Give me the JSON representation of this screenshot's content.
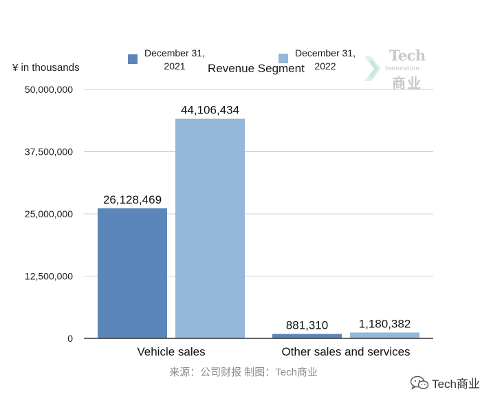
{
  "chart_data": {
    "type": "bar",
    "title": "Revenue Segment",
    "ylabel": "¥ in thousands",
    "xlabel": "",
    "categories": [
      "Vehicle sales",
      "Other sales and services"
    ],
    "series": [
      {
        "name": "December 31, 2021",
        "values": [
          26128469,
          881310
        ],
        "labels": [
          "26,128,469",
          "881,310"
        ],
        "color": "#5b86b9"
      },
      {
        "name": "December 31, 2022",
        "values": [
          44106434,
          1180382
        ],
        "labels": [
          "44,106,434",
          "1,180,382"
        ],
        "color": "#94b7da"
      }
    ],
    "ylim": [
      0,
      50000000
    ],
    "yticks": [
      0,
      12500000,
      25000000,
      37500000,
      50000000
    ],
    "ytick_labels": [
      "0",
      "12,500,000",
      "25,000,000",
      "37,500,000",
      "50,000,000"
    ],
    "grid": true,
    "legend": "top"
  },
  "legend": {
    "item1_line1": "December 31,",
    "item1_line2": "2021",
    "item2_line1": "December 31,",
    "item2_line2": "2022"
  },
  "source_text": "来源：公司财报 制图：Tech商业",
  "watermark": {
    "word": "Tech",
    "sub": "Innovation",
    "cn": "商业"
  },
  "badge_text": "Tech商业",
  "icons": [
    "wechat-icon",
    "watermark-arrow-icon"
  ]
}
